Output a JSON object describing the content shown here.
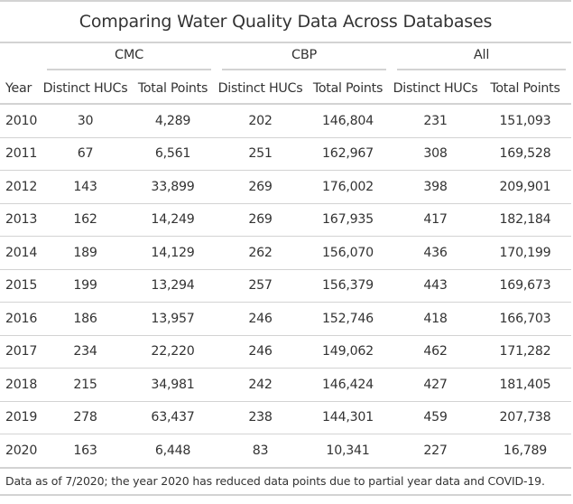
{
  "title": "Comparing Water Quality Data Across Databases",
  "spanners": [
    "CMC",
    "CBP",
    "All"
  ],
  "columns": [
    "Year",
    "Distinct HUCs",
    "Total Points",
    "Distinct HUCs",
    "Total Points",
    "Distinct HUCs",
    "Total Points"
  ],
  "rows": [
    [
      "2010",
      "30",
      "4,289",
      "202",
      "146,804",
      "231",
      "151,093"
    ],
    [
      "2011",
      "67",
      "6,561",
      "251",
      "162,967",
      "308",
      "169,528"
    ],
    [
      "2012",
      "143",
      "33,899",
      "269",
      "176,002",
      "398",
      "209,901"
    ],
    [
      "2013",
      "162",
      "14,249",
      "269",
      "167,935",
      "417",
      "182,184"
    ],
    [
      "2014",
      "189",
      "14,129",
      "262",
      "156,070",
      "436",
      "170,199"
    ],
    [
      "2015",
      "199",
      "13,294",
      "257",
      "156,379",
      "443",
      "169,673"
    ],
    [
      "2016",
      "186",
      "13,957",
      "246",
      "152,746",
      "418",
      "166,703"
    ],
    [
      "2017",
      "234",
      "22,220",
      "246",
      "149,062",
      "462",
      "171,282"
    ],
    [
      "2018",
      "215",
      "34,981",
      "242",
      "146,424",
      "427",
      "181,405"
    ],
    [
      "2019",
      "278",
      "63,437",
      "238",
      "144,301",
      "459",
      "207,738"
    ],
    [
      "2020",
      "163",
      "6,448",
      "83",
      "10,341",
      "227",
      "16,789"
    ]
  ],
  "footnote": "Data as of 7/2020; the year 2020 has reduced data points due to partial year data and COVID-19.",
  "colors": {
    "text": "#333333",
    "rule": "#d3d3d3",
    "background": "#ffffff"
  }
}
